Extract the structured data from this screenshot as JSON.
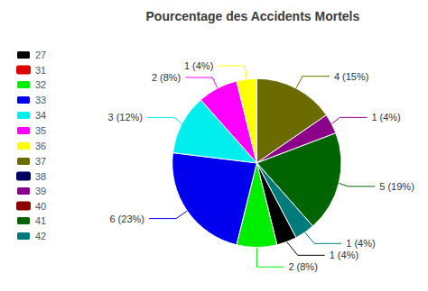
{
  "chart_data": {
    "type": "pie",
    "title": "Pourcentage des Accidents Mortels",
    "categories": [
      "37",
      "39",
      "41",
      "42",
      "27",
      "32",
      "33",
      "34",
      "35",
      "36"
    ],
    "values": [
      4,
      1,
      5,
      1,
      1,
      2,
      6,
      3,
      2,
      1
    ],
    "value_labels": [
      "4 (15%)",
      "1 (4%)",
      "5 (19%)",
      "1 (4%)",
      "1 (4%)",
      "2 (8%)",
      "6 (23%)",
      "3 (12%)",
      "2 (8%)",
      "1 (4%)"
    ],
    "colors": [
      "#6b6b00",
      "#8b008b",
      "#006400",
      "#007b7b",
      "#000000",
      "#00ee00",
      "#0000ee",
      "#00eeee",
      "#ff00ff",
      "#ffff00"
    ],
    "data_labels": true,
    "legend": "left",
    "legend_entries": [
      {
        "name": "27",
        "color": "#000000"
      },
      {
        "name": "31",
        "color": "#dd0000"
      },
      {
        "name": "32",
        "color": "#00ee00"
      },
      {
        "name": "33",
        "color": "#0000ee"
      },
      {
        "name": "34",
        "color": "#00eeee"
      },
      {
        "name": "35",
        "color": "#ff00ff"
      },
      {
        "name": "36",
        "color": "#ffff00"
      },
      {
        "name": "37",
        "color": "#6b6b00"
      },
      {
        "name": "38",
        "color": "#000060"
      },
      {
        "name": "39",
        "color": "#8b008b"
      },
      {
        "name": "40",
        "color": "#8b0000"
      },
      {
        "name": "41",
        "color": "#006400"
      },
      {
        "name": "42",
        "color": "#007b7b"
      }
    ]
  }
}
